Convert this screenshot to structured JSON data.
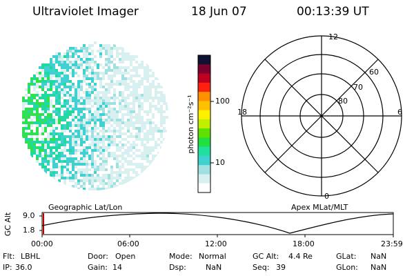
{
  "header": {
    "instrument": "Ultraviolet Imager",
    "date": "18 Jun 07",
    "time": "00:13:39 UT"
  },
  "colorbar": {
    "unit_label": "photon cm⁻²s⁻¹",
    "ticks": [
      "100",
      "10"
    ],
    "colors": [
      "#101030",
      "#7a0030",
      "#c00020",
      "#ff2010",
      "#ff9000",
      "#ffc000",
      "#fff000",
      "#c0f000",
      "#60e000",
      "#20e040",
      "#20e0a0",
      "#40d0d0",
      "#a0e0e0",
      "#d8f0f0",
      "#ffffff"
    ]
  },
  "polar": {
    "mlt_labels": {
      "top": "12",
      "left": "18",
      "right": "6",
      "bottom": "0"
    },
    "lat_labels": [
      "60",
      "70",
      "80"
    ]
  },
  "timeline": {
    "left_label": "Geographic Lat/Lon",
    "right_label": "Apex MLat/MLT",
    "y_axis_label": "GC Alt",
    "y_ticks": [
      "9.0",
      "1.8"
    ],
    "x_ticks": [
      "00:00",
      "06:00",
      "12:00",
      "18:00",
      "23:59"
    ]
  },
  "status": {
    "row1": [
      {
        "label": "Flt:",
        "value": "LBHL"
      },
      {
        "label": "Door:",
        "value": "Open"
      },
      {
        "label": "Mode:",
        "value": "Normal"
      },
      {
        "label": "GC Alt:",
        "value": "4.4 Re"
      },
      {
        "label": "GLat:",
        "value": "NaN"
      }
    ],
    "row2": [
      {
        "label": "IP:",
        "value": "36.0"
      },
      {
        "label": "Gain:",
        "value": "14"
      },
      {
        "label": "Dsp:",
        "value": "NaN"
      },
      {
        "label": "Seq:",
        "value": "39"
      },
      {
        "label": "GLon:",
        "value": "NaN"
      }
    ]
  }
}
